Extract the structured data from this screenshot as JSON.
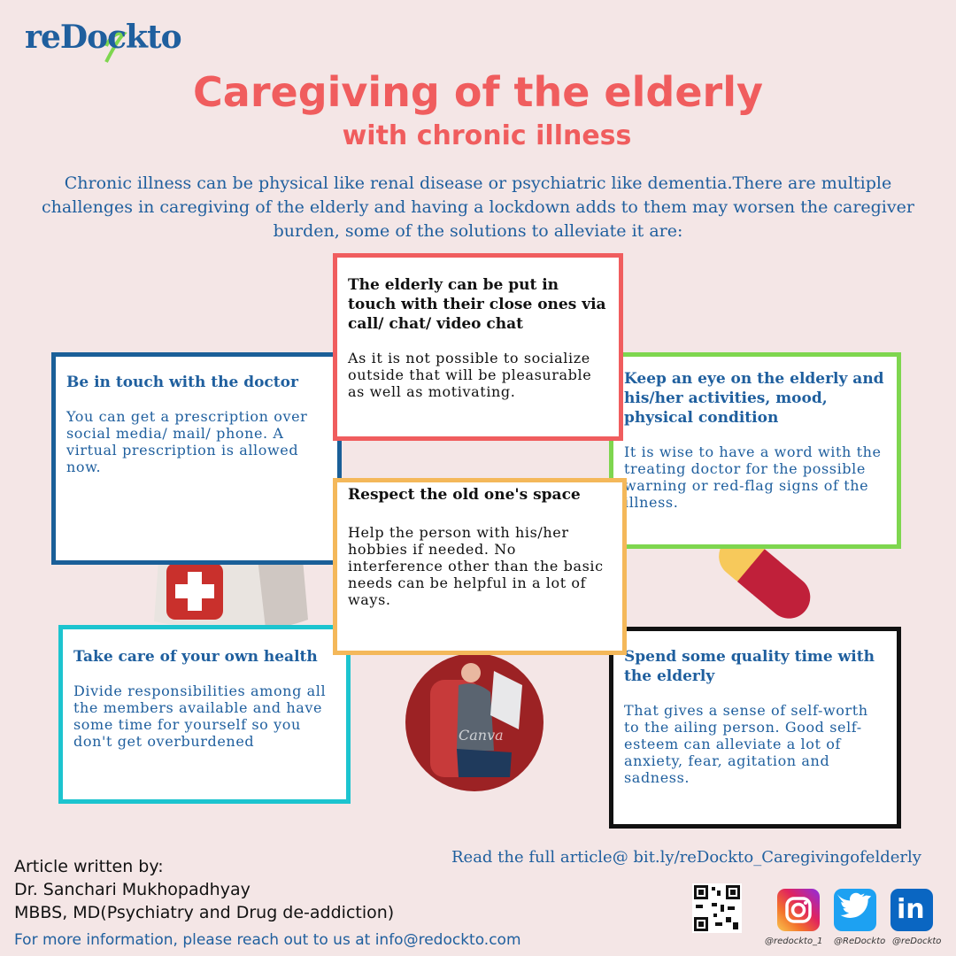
{
  "brand": {
    "logo_text": "reDockto"
  },
  "header": {
    "title": "Caregiving of the elderly",
    "subtitle": "with chronic illness",
    "intro": "Chronic illness can be physical like renal disease or psychiatric like dementia.There are multiple challenges in caregiving of the elderly and having a lockdown adds to them may worsen the caregiver burden, some of the solutions to alleviate it are:"
  },
  "cards": {
    "doctor": {
      "heading": "Be in touch with the doctor",
      "body": "You can get a prescription over social media/ mail/ phone. A virtual prescription is allowed now."
    },
    "contact": {
      "heading": "The elderly can be put in touch with their close ones via call/ chat/ video chat",
      "body": "As it is not possible to socialize outside that will be pleasurable as well as motivating."
    },
    "watch": {
      "heading": "Keep an eye on the elderly and his/her activities, mood, physical condition",
      "body": "It is wise to have a word with the treating doctor for the possible warning or red-flag signs of the illness."
    },
    "space": {
      "heading": "Respect the old one's space",
      "body": "Help the person with his/her hobbies if needed. No interference other than the basic needs can be helpful in a lot of ways."
    },
    "self": {
      "heading": "Take care of your own health",
      "body": "Divide responsibilities among all the members available and have some time for yourself so you don't get overburdened"
    },
    "quality": {
      "heading": "Spend some quality time with the elderly",
      "body": "That gives a sense of self-worth to the ailing person. Good self-esteem can alleviate a lot of anxiety, fear, agitation and sadness."
    }
  },
  "illustrations": {
    "bag_icon": "first-aid-bag-icon",
    "pill_icon": "pill-capsule-icon",
    "elderly_icon": "elderly-reading-icon",
    "watermark": "Canva"
  },
  "footer": {
    "author_label": "Article written by:",
    "author_name": "Dr. Sanchari Mukhopadhyay",
    "author_degree": "MBBS, MD(Psychiatry and Drug de-addiction)",
    "contact": "For more information, please reach out to us at info@redockto.com",
    "read_more": "Read the full article@ bit.ly/reDockto_Caregivingofelderly"
  },
  "social": {
    "instagram_handle": "@redockto_1",
    "twitter_handle": "@ReDockto",
    "linkedin_handle": "@reDockto",
    "linkedin_glyph": "in"
  },
  "colors": {
    "background": "#f4e6e6",
    "title": "#f05d5e",
    "text_blue": "#1f5f9e",
    "border_blue": "#1a5f98",
    "border_red": "#f05d5e",
    "border_green": "#7ed64f",
    "border_orange": "#f4b85a",
    "border_teal": "#1cc4cf",
    "border_black": "#111111"
  }
}
